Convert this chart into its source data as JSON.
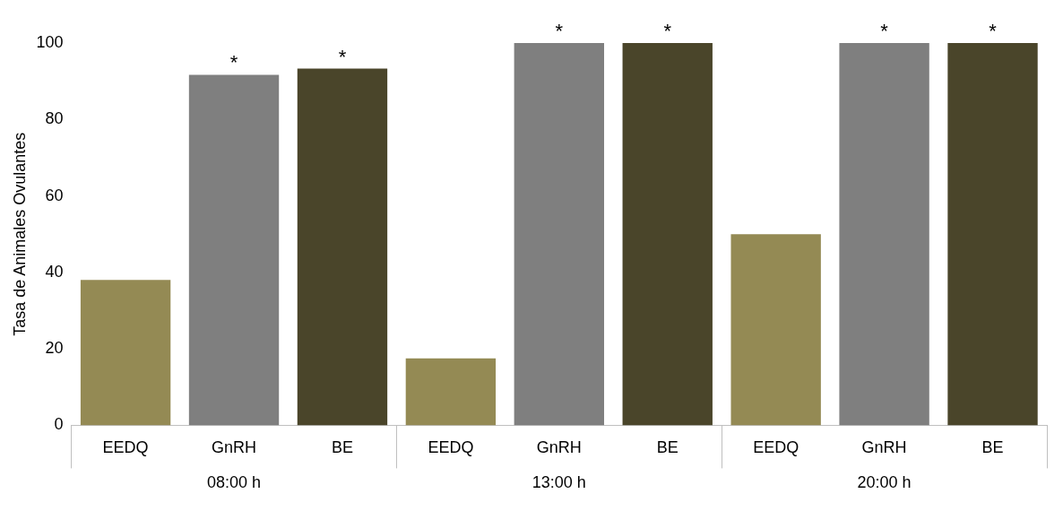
{
  "chart_data": {
    "type": "bar",
    "ylabel": "Tasa de Animales Ovulantes",
    "categories": [
      "08:00 h",
      "13:00 h",
      "20:00 h"
    ],
    "series": [
      {
        "name": "EEDQ",
        "color": "#948a54",
        "values": [
          38,
          17.5,
          50
        ]
      },
      {
        "name": "GnRH",
        "color": "#7f7f7f",
        "values": [
          91.7,
          100,
          100
        ],
        "value_labels": [
          "*",
          "*",
          "*"
        ]
      },
      {
        "name": "BE",
        "color": "#4a452a",
        "values": [
          93.3,
          100,
          100
        ],
        "value_labels": [
          "*",
          "*",
          "*"
        ]
      }
    ],
    "ylim": [
      0,
      100
    ],
    "yticks": [
      0,
      20,
      40,
      60,
      80,
      100
    ],
    "grid": false,
    "legend": false
  }
}
